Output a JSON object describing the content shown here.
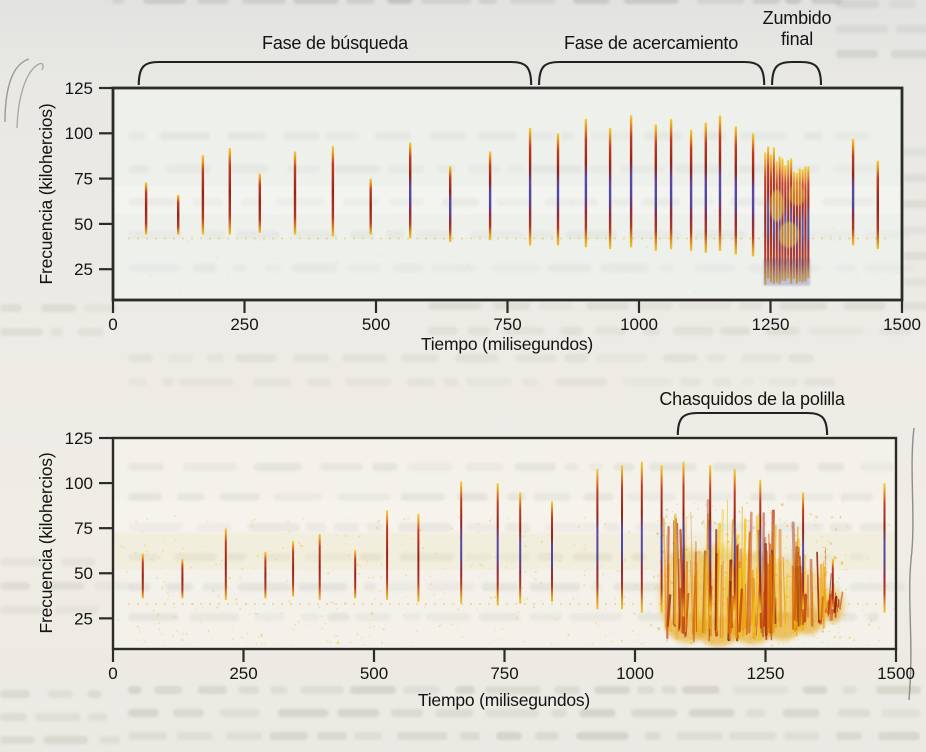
{
  "page": {
    "background_color": "#ece9e4",
    "text_color": "#141414"
  },
  "palette": {
    "axis": "#2b2b28",
    "pulse_yellow": "#f4cf30",
    "pulse_orange": "#ea9618",
    "pulse_red": "#c23114",
    "pulse_dark_red": "#921b0e",
    "pulse_blue": "#4b3e9e",
    "click_yellow": "#f2c614",
    "click_orange": "#dd6e08",
    "click_red": "#c23c10",
    "click_dark_red": "#93200a",
    "noise_yellow": "#e6c22e"
  },
  "chart_data": [
    {
      "type": "spectrogram",
      "xlabel": "Tiempo (milisegundos)",
      "ylabel": "Frecuencia (kilohercios)",
      "x_ticks": [
        0,
        250,
        500,
        750,
        1000,
        1250,
        1500
      ],
      "y_ticks": [
        125,
        100,
        75,
        50,
        25
      ],
      "xlim": [
        0,
        1500
      ],
      "ylim": [
        8,
        125
      ],
      "grid": false,
      "pulse_width": 2.4,
      "annotations": [
        {
          "label": "Fase de búsqueda",
          "t_start": 49,
          "t_end": 795
        },
        {
          "label": "Fase de acercamiento",
          "t_start": 810,
          "t_end": 1238
        },
        {
          "label": "Zumbido final",
          "t_start": 1253,
          "t_end": 1346
        }
      ],
      "pulses": [
        [
          63,
          44,
          73,
          "r"
        ],
        [
          124,
          44,
          66,
          "r"
        ],
        [
          171,
          44,
          88,
          "r"
        ],
        [
          222,
          44,
          92,
          "r"
        ],
        [
          279,
          45,
          78,
          "r"
        ],
        [
          346,
          44,
          90,
          "r"
        ],
        [
          418,
          43,
          93,
          "r"
        ],
        [
          490,
          44,
          75,
          "r"
        ],
        [
          565,
          42,
          95,
          "b"
        ],
        [
          641,
          40,
          82,
          "b"
        ],
        [
          717,
          41,
          90,
          "b"
        ],
        [
          793,
          38,
          103,
          "b"
        ],
        [
          846,
          38,
          100,
          "b"
        ],
        [
          899,
          37,
          108,
          "b"
        ],
        [
          945,
          36,
          103,
          "b"
        ],
        [
          985,
          37,
          110,
          "b"
        ],
        [
          1032,
          35,
          105,
          "b"
        ],
        [
          1061,
          36,
          108,
          "b"
        ],
        [
          1099,
          35,
          102,
          "b"
        ],
        [
          1127,
          34,
          106,
          "b"
        ],
        [
          1154,
          35,
          110,
          "b"
        ],
        [
          1184,
          33,
          104,
          "b"
        ],
        [
          1217,
          32,
          100,
          "b"
        ],
        [
          1407,
          38,
          97,
          "b"
        ],
        [
          1454,
          36,
          85,
          "r"
        ]
      ],
      "buzz": {
        "t_start": 1240,
        "t_end": 1322,
        "count": 16,
        "f_low": 17,
        "f_high_start": 92,
        "f_high_end": 78
      },
      "dotted_baseline_khz": 42
    },
    {
      "type": "spectrogram",
      "xlabel": "Tiempo (milisegundos)",
      "ylabel": "Frecuencia (kilohercios)",
      "x_ticks": [
        0,
        250,
        500,
        750,
        1000,
        1250,
        1500
      ],
      "y_ticks": [
        125,
        100,
        75,
        50,
        25
      ],
      "xlim": [
        0,
        1500
      ],
      "ylim": [
        8,
        125
      ],
      "grid": false,
      "pulse_width": 2.0,
      "background_noise": true,
      "annotations": [
        {
          "label": "Chasquidos de la polilla",
          "t_start": 1082,
          "t_end": 1368
        }
      ],
      "pulses": [
        [
          57,
          36,
          61,
          "r"
        ],
        [
          133,
          36,
          58,
          "r"
        ],
        [
          216,
          35,
          75,
          "r"
        ],
        [
          292,
          36,
          62,
          "r"
        ],
        [
          345,
          37,
          68,
          "r"
        ],
        [
          396,
          35,
          72,
          "r"
        ],
        [
          464,
          36,
          63,
          "r"
        ],
        [
          525,
          35,
          85,
          "r"
        ],
        [
          585,
          34,
          83,
          "r"
        ],
        [
          667,
          33,
          101,
          "b"
        ],
        [
          737,
          32,
          100,
          "b"
        ],
        [
          780,
          33,
          95,
          "b"
        ],
        [
          841,
          34,
          90,
          "b"
        ],
        [
          928,
          30,
          108,
          "b"
        ],
        [
          975,
          30,
          110,
          "b"
        ],
        [
          1013,
          28,
          112,
          "b"
        ],
        [
          1051,
          28,
          110,
          "b"
        ],
        [
          1093,
          26,
          112,
          "b"
        ],
        [
          1144,
          27,
          110,
          "b"
        ],
        [
          1191,
          28,
          108,
          "b"
        ],
        [
          1240,
          28,
          102,
          "b"
        ],
        [
          1322,
          30,
          95,
          "b"
        ],
        [
          1379,
          30,
          58,
          "r"
        ],
        [
          1478,
          28,
          100,
          "b"
        ]
      ],
      "clicks": [
        {
          "t": 1100,
          "spread": 45,
          "f_low": 14,
          "f_high": 88
        },
        {
          "t": 1160,
          "spread": 50,
          "f_low": 12,
          "f_high": 92
        },
        {
          "t": 1225,
          "spread": 48,
          "f_low": 13,
          "f_high": 85
        },
        {
          "t": 1283,
          "spread": 42,
          "f_low": 15,
          "f_high": 78
        },
        {
          "t": 1332,
          "spread": 30,
          "f_low": 18,
          "f_high": 68
        },
        {
          "t": 1380,
          "spread": 14,
          "f_low": 24,
          "f_high": 50
        }
      ],
      "dotted_baseline_khz": 33
    }
  ]
}
